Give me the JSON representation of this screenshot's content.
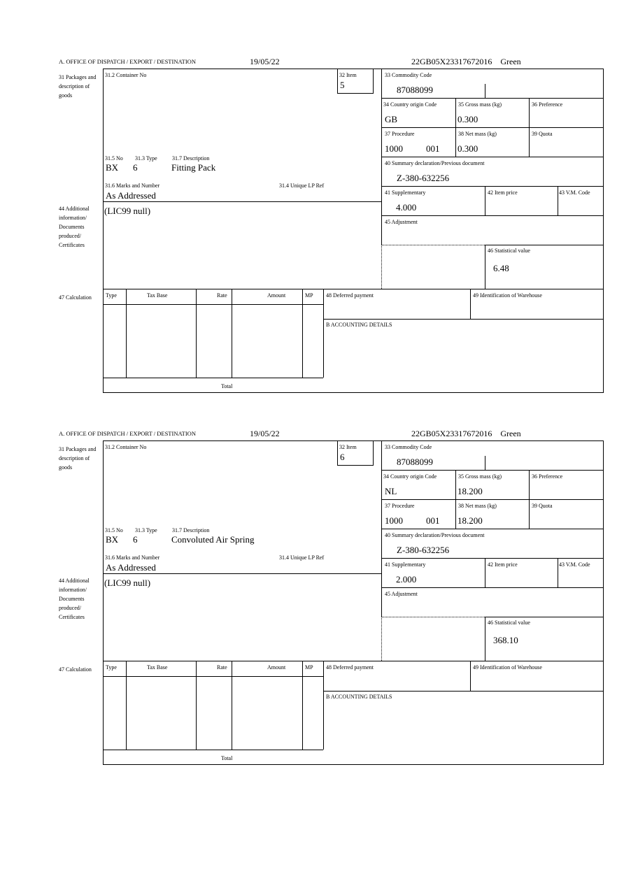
{
  "labels": {
    "office": "A.  OFFICE OF DISPATCH / EXPORT / DESTINATION",
    "box31": "31 Packages and description of goods",
    "container": "31.2 Container No",
    "item": "32 Item",
    "commodity": "33 Commodity Code",
    "country": "34 Country origin Code",
    "gross": "35 Gross mass (kg)",
    "preference": "36 Preference",
    "procedure": "37 Procedure",
    "net": "38 Net mass (kg)",
    "quota": "39 Quota",
    "summary": "40 Summary declaration/Previous document",
    "supplementary": "41 Supplementary",
    "item_price": "42 Item price",
    "vm_code": "43 V.M. Code",
    "no": "31.5 No",
    "type": "31.3 Type",
    "description": "31.7 Description",
    "marks": "31.6 Marks and Number",
    "unique_ref": "31.4 Unique LP Ref",
    "box44": "44 Additional information/ Documents produced/ Certificates",
    "adjustment": "45 Adjustment",
    "statistical": "46 Statistical value",
    "box47": "47 Calculation",
    "col_type": "Type",
    "col_tax_base": "Tax Base",
    "col_rate": "Rate",
    "col_amount": "Amount",
    "col_mp": "MP",
    "deferred": "48 Deferred payment",
    "warehouse": "49 Identification of Warehouse",
    "accounting": "B ACCOUNTING DETAILS",
    "total": "Total"
  },
  "forms": [
    {
      "date": "19/05/22",
      "reference": "22GB05X23317672016    Green",
      "item": "5",
      "commodity": "87088099",
      "country": "GB",
      "gross": "0.300",
      "procedure": "1000",
      "procedure_code": "001",
      "net": "0.300",
      "summary": "Z-380-632256",
      "supplementary": "4.000",
      "no": "BX",
      "type": "6",
      "description": "Fitting Pack",
      "marks": "As Addressed",
      "additional": "(LIC99 null)",
      "statistical": "6.48"
    },
    {
      "date": "19/05/22",
      "reference": "22GB05X23317672016    Green",
      "item": "6",
      "commodity": "87088099",
      "country": "NL",
      "gross": "18.200",
      "procedure": "1000",
      "procedure_code": "001",
      "net": "18.200",
      "summary": "Z-380-632256",
      "supplementary": "2.000",
      "no": "BX",
      "type": "6",
      "description": "Convoluted Air Spring",
      "marks": "As Addressed",
      "additional": "(LIC99 null)",
      "statistical": "368.10"
    }
  ]
}
